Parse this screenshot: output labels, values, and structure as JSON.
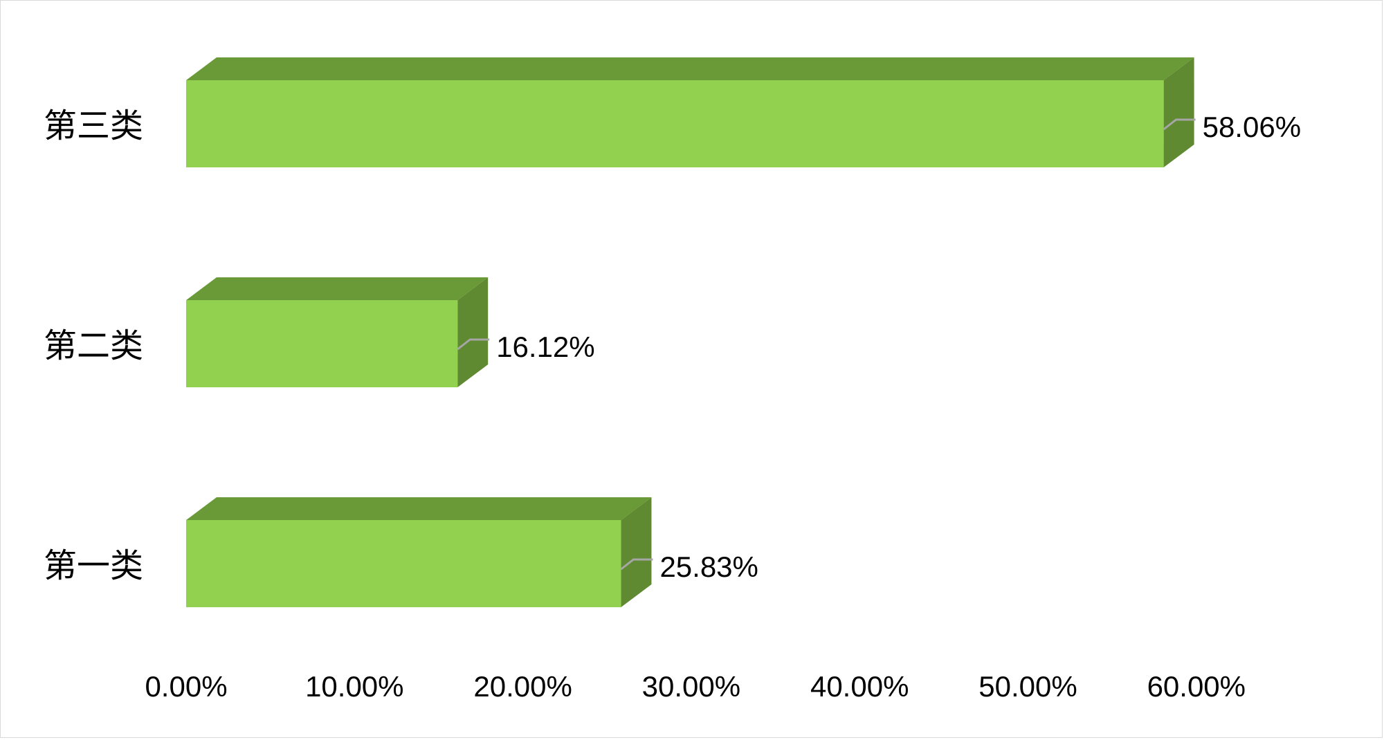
{
  "chart_data": {
    "type": "bar",
    "orientation": "horizontal",
    "style": "3d",
    "categories": [
      "第三类",
      "第二类",
      "第一类"
    ],
    "values": [
      58.06,
      16.12,
      25.83
    ],
    "data_labels": [
      "58.06%",
      "16.12%",
      "25.83%"
    ],
    "x_ticks": [
      "0.00%",
      "10.00%",
      "20.00%",
      "30.00%",
      "40.00%",
      "50.00%",
      "60.00%"
    ],
    "xlim": [
      0,
      60
    ],
    "grid": false,
    "legend": "none",
    "title": "",
    "xlabel": "",
    "ylabel": ""
  },
  "colors": {
    "bar_front": "#92d050",
    "bar_top": "#6a9a38",
    "bar_side": "#5f8a32",
    "leader_line": "#a6a6a6"
  }
}
